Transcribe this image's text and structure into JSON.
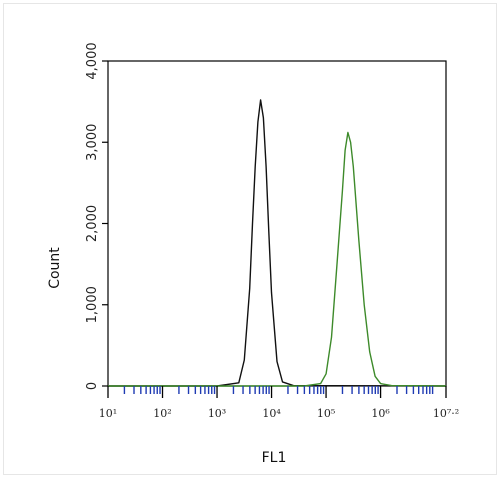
{
  "chart_data": {
    "type": "line",
    "title": "",
    "xlabel": "FL1",
    "ylabel": "Count",
    "x_scale": "log",
    "xlim": [
      1,
      7.2
    ],
    "ylim": [
      0,
      4000
    ],
    "y_ticks": [
      0,
      1000,
      2000,
      3000,
      4000
    ],
    "y_tick_labels": [
      "0",
      "1,000",
      "2,000",
      "3,000",
      "4,000"
    ],
    "x_tick_positions": [
      1,
      2,
      3,
      4,
      5,
      6,
      7.2
    ],
    "x_tick_labels": [
      "10¹",
      "10²",
      "10³",
      "10⁴",
      "10⁵",
      "10⁶",
      "10⁷·²"
    ],
    "grid": false,
    "legend": "none",
    "series": [
      {
        "color": "#111111",
        "x": [
          1.0,
          3.0,
          3.4,
          3.5,
          3.6,
          3.65,
          3.7,
          3.75,
          3.8,
          3.85,
          3.9,
          3.95,
          4.0,
          4.1,
          4.2,
          4.4,
          7.2
        ],
        "values": [
          0,
          0,
          40,
          320,
          1200,
          2000,
          2700,
          3250,
          3520,
          3300,
          2700,
          1900,
          1150,
          300,
          50,
          5,
          0
        ]
      },
      {
        "color": "#3d8a2a",
        "x": [
          1.0,
          4.6,
          4.9,
          5.0,
          5.1,
          5.2,
          5.3,
          5.35,
          5.4,
          5.45,
          5.5,
          5.6,
          5.7,
          5.8,
          5.9,
          6.0,
          6.2,
          7.2
        ],
        "values": [
          0,
          0,
          30,
          150,
          600,
          1500,
          2400,
          2900,
          3120,
          3000,
          2700,
          1800,
          1000,
          420,
          120,
          30,
          5,
          0
        ]
      }
    ]
  }
}
